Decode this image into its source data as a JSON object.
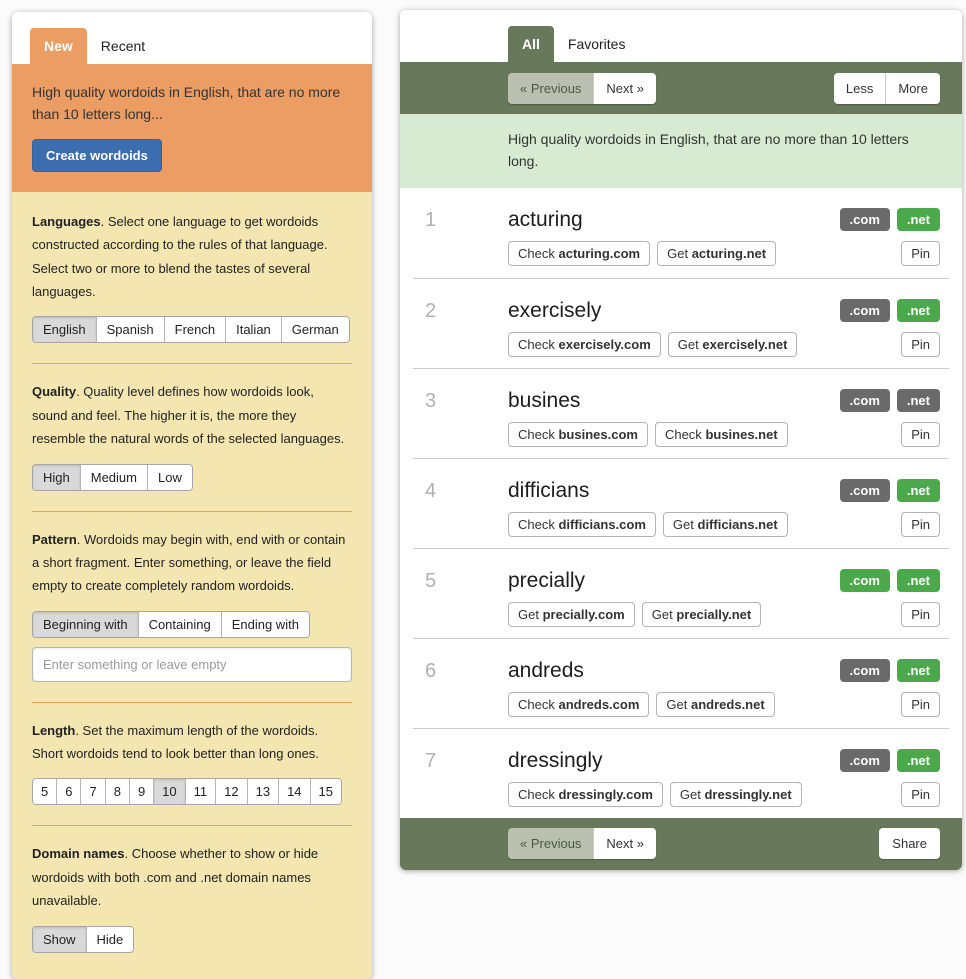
{
  "left_panel": {
    "tabs": {
      "new": "New",
      "recent": "Recent"
    },
    "summary": "High quality wordoids in English, that are no more than 10 letters long...",
    "create_button": "Create wordoids",
    "sections": {
      "languages": {
        "title": "Languages",
        "description": ". Select one language to get wordoids constructed according to the rules of that language. Select two or more to blend the tastes of several languages.",
        "options": [
          "English",
          "Spanish",
          "French",
          "Italian",
          "German"
        ],
        "selected": "English"
      },
      "quality": {
        "title": "Quality",
        "description": ". Quality level defines how wordoids look, sound and feel. The higher it is, the more they resemble the natural words of the selected languages.",
        "options": [
          "High",
          "Medium",
          "Low"
        ],
        "selected": "High"
      },
      "pattern": {
        "title": "Pattern",
        "description": ". Wordoids may begin with, end with or contain a short fragment. Enter something, or leave the field empty to create completely random wordoids.",
        "options": [
          "Beginning with",
          "Containing",
          "Ending with"
        ],
        "selected": "Beginning with",
        "input_value": "",
        "input_placeholder": "Enter something or leave empty"
      },
      "length": {
        "title": "Length",
        "description": ". Set the maximum length of the wordoids. Short wordoids tend to look better than long ones.",
        "options": [
          "5",
          "6",
          "7",
          "8",
          "9",
          "10",
          "11",
          "12",
          "13",
          "14",
          "15"
        ],
        "selected": "10"
      },
      "domains": {
        "title": "Domain names",
        "description": ". Choose whether to show or hide wordoids with both .com and .net domain names unavailable.",
        "options": [
          "Show",
          "Hide"
        ],
        "selected": "Show"
      }
    }
  },
  "right_panel": {
    "tabs": {
      "all": "All",
      "favorites": "Favorites"
    },
    "toolbar": {
      "previous": "« Previous",
      "next": "Next »",
      "less": "Less",
      "more": "More"
    },
    "info": "High quality wordoids in English, that are no more than 10 letters long.",
    "badge_labels": {
      "com": ".com",
      "net": ".net"
    },
    "pin_label": "Pin",
    "rows": [
      {
        "idx": "1",
        "word": "acturing",
        "com_avail": false,
        "net_avail": true,
        "com_action": "Check",
        "com_domain": "acturing.com",
        "net_action": "Get",
        "net_domain": "acturing.net"
      },
      {
        "idx": "2",
        "word": "exercisely",
        "com_avail": false,
        "net_avail": true,
        "com_action": "Check",
        "com_domain": "exercisely.com",
        "net_action": "Get",
        "net_domain": "exercisely.net"
      },
      {
        "idx": "3",
        "word": "busines",
        "com_avail": false,
        "net_avail": false,
        "com_action": "Check",
        "com_domain": "busines.com",
        "net_action": "Check",
        "net_domain": "busines.net"
      },
      {
        "idx": "4",
        "word": "difficians",
        "com_avail": false,
        "net_avail": true,
        "com_action": "Check",
        "com_domain": "difficians.com",
        "net_action": "Get",
        "net_domain": "difficians.net"
      },
      {
        "idx": "5",
        "word": "precially",
        "com_avail": true,
        "net_avail": true,
        "com_action": "Get",
        "com_domain": "precially.com",
        "net_action": "Get",
        "net_domain": "precially.net"
      },
      {
        "idx": "6",
        "word": "andreds",
        "com_avail": false,
        "net_avail": true,
        "com_action": "Check",
        "com_domain": "andreds.com",
        "net_action": "Get",
        "net_domain": "andreds.net"
      },
      {
        "idx": "7",
        "word": "dressingly",
        "com_avail": false,
        "net_avail": true,
        "com_action": "Check",
        "com_domain": "dressingly.com",
        "net_action": "Get",
        "net_domain": "dressingly.net"
      }
    ],
    "footer": {
      "previous": "« Previous",
      "next": "Next »",
      "share": "Share"
    }
  },
  "colors": {
    "orange": "#EB9D63",
    "beige": "#F4E6B0",
    "divider": "#E9A35F",
    "blue": "#3C6EAF",
    "olive": "#68795B",
    "light_green": "#D7EBD2",
    "badge_taken": "#6A6A6A",
    "badge_available": "#4BA84B"
  }
}
